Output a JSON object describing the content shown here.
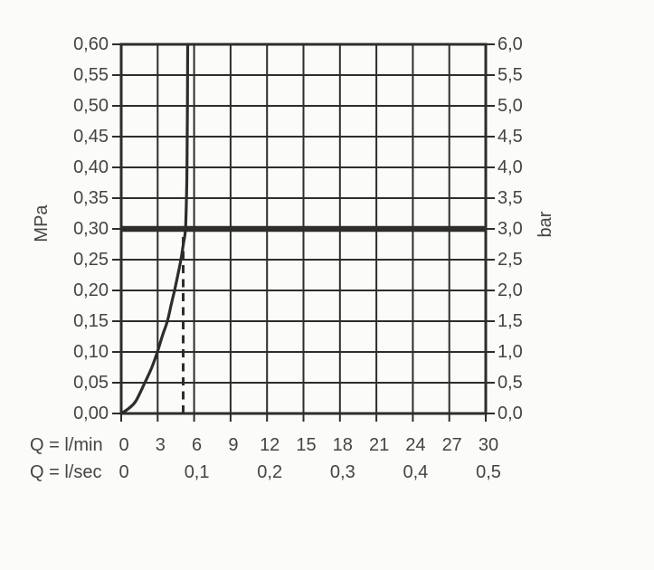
{
  "chart_data": {
    "type": "line",
    "title": "",
    "description": "Flow-rate vs pressure diagram with flow limiter curve, 3 bar reference line and dashed flow marker",
    "x_axis": {
      "min": 0,
      "max": 30,
      "rows": [
        {
          "label": "Q = l/min",
          "ticks": [
            {
              "q": 0,
              "label": "0"
            },
            {
              "q": 3,
              "label": "3"
            },
            {
              "q": 6,
              "label": "6"
            },
            {
              "q": 9,
              "label": "9"
            },
            {
              "q": 12,
              "label": "12"
            },
            {
              "q": 15,
              "label": "15"
            },
            {
              "q": 18,
              "label": "18"
            },
            {
              "q": 21,
              "label": "21"
            },
            {
              "q": 24,
              "label": "24"
            },
            {
              "q": 27,
              "label": "27"
            },
            {
              "q": 30,
              "label": "30"
            }
          ]
        },
        {
          "label": "Q = l/sec",
          "ticks": [
            {
              "q": 0,
              "label": "0"
            },
            {
              "q": 6,
              "label": "0,1"
            },
            {
              "q": 12,
              "label": "0,2"
            },
            {
              "q": 18,
              "label": "0,3"
            },
            {
              "q": 24,
              "label": "0,4"
            },
            {
              "q": 30,
              "label": "0,5"
            }
          ]
        }
      ]
    },
    "y_axis_left": {
      "label": "MPa",
      "min": 0,
      "max": 0.6,
      "tick_step": 0.05,
      "tick_labels": [
        "0,60",
        "0,55",
        "0,50",
        "0,45",
        "0,40",
        "0,35",
        "0,30",
        "0,25",
        "0,20",
        "0,15",
        "0,10",
        "0,05",
        "0,00"
      ]
    },
    "y_axis_right": {
      "label": "bar",
      "min": 0,
      "max": 6,
      "tick_step": 0.5,
      "tick_labels": [
        "6,0",
        "5,5",
        "5,0",
        "4,5",
        "4,0",
        "3,5",
        "3,0",
        "2,5",
        "2,0",
        "1,5",
        "1,0",
        "0,5",
        "0,0"
      ]
    },
    "grid": {
      "x_step": 3,
      "y_step": 0.05,
      "shown": true
    },
    "series": [
      {
        "name": "flow-curve",
        "points": [
          [
            0,
            0
          ],
          [
            0.6,
            0.008
          ],
          [
            1.2,
            0.02
          ],
          [
            1.94,
            0.05
          ],
          [
            2.5,
            0.074
          ],
          [
            2.98,
            0.1
          ],
          [
            3.4,
            0.127
          ],
          [
            3.8,
            0.15
          ],
          [
            4.1,
            0.176
          ],
          [
            4.39,
            0.2
          ],
          [
            4.66,
            0.225
          ],
          [
            4.91,
            0.25
          ],
          [
            5.12,
            0.276
          ],
          [
            5.29,
            0.3
          ],
          [
            5.38,
            0.36
          ],
          [
            5.42,
            0.42
          ],
          [
            5.45,
            0.5
          ],
          [
            5.47,
            0.6
          ]
        ]
      }
    ],
    "reference_line": {
      "mpa": 0.3,
      "bar": 3.0
    },
    "dashed_marker": {
      "q_lmin": 5.1,
      "to_mpa": 0.3
    },
    "colors": {
      "line": "#2e2d2b",
      "grid": "#2e2d2b",
      "text": "#454442",
      "background": "#fbfbfa"
    }
  }
}
